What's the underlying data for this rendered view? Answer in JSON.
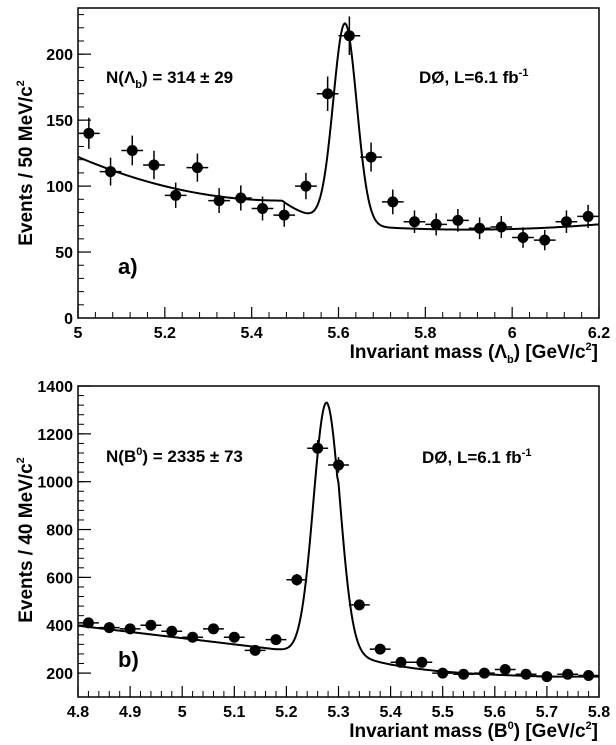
{
  "chart_data": [
    {
      "type": "scatter",
      "panel_label": "a)",
      "xlabel": {
        "pre": "Invariant mass (",
        "sym": "Λ",
        "sub": "b",
        "post": ") [GeV/c",
        "sup": "2",
        "end": "]"
      },
      "ylabel": {
        "pre": "Events / 50 MeV/c",
        "sup": "2"
      },
      "xlim": [
        5.0,
        6.2
      ],
      "ylim": [
        0,
        235
      ],
      "xticks": [
        "5",
        "5.2",
        "5.4",
        "5.6",
        "5.8",
        "6",
        "6.2"
      ],
      "yticks": [
        "50",
        "100",
        "150",
        "200"
      ],
      "annotations": [
        {
          "id": "yield",
          "pre": "N(",
          "sym": "Λ",
          "sub": "b",
          "post": ") = 314 ± 29"
        },
        {
          "id": "lumi",
          "pre": "DØ, L=6.1 fb",
          "sup": "-1"
        }
      ],
      "bin_halfwidth": 0.025,
      "x": [
        5.025,
        5.075,
        5.125,
        5.175,
        5.225,
        5.275,
        5.325,
        5.375,
        5.425,
        5.475,
        5.525,
        5.575,
        5.625,
        5.675,
        5.725,
        5.775,
        5.825,
        5.875,
        5.925,
        5.975,
        6.025,
        6.075,
        6.125,
        6.175
      ],
      "y": [
        140,
        111,
        127,
        116,
        93,
        114,
        89,
        91,
        83,
        78,
        100,
        170,
        214,
        122,
        88,
        73,
        71,
        74,
        68,
        69,
        61,
        59,
        73,
        77
      ],
      "fit": {
        "bg_a": 89,
        "bg_b": 2185,
        "bg_c": 5.32,
        "bg_d": 129,
        "bg_e": 5.0,
        "bg_tail": 67,
        "peak_amp": 152,
        "peak_mean": 5.615,
        "peak_sigma": 0.027
      }
    },
    {
      "type": "scatter",
      "panel_label": "b)",
      "xlabel": {
        "pre": "Invariant mass (B",
        "sup1": "0",
        "post": ") [GeV/c",
        "sup": "2",
        "end": "]"
      },
      "ylabel": {
        "pre": "Events / 40 MeV/c",
        "sup": "2"
      },
      "xlim": [
        4.8,
        5.8
      ],
      "ylim": [
        100,
        1400
      ],
      "xticks": [
        "4.8",
        "4.9",
        "5",
        "5.1",
        "5.2",
        "5.3",
        "5.4",
        "5.5",
        "5.6",
        "5.7",
        "5.8"
      ],
      "yticks": [
        "200",
        "400",
        "600",
        "800",
        "1000",
        "1200",
        "1400"
      ],
      "annotations": [
        {
          "id": "yield",
          "pre": "N(B",
          "sup": "0",
          "post": ") = 2335 ± 73"
        },
        {
          "id": "lumi",
          "pre": "DØ, L=6.1 fb",
          "sup": "-1"
        }
      ],
      "bin_halfwidth": 0.02,
      "x": [
        4.82,
        4.86,
        4.9,
        4.94,
        4.98,
        5.02,
        5.06,
        5.1,
        5.14,
        5.18,
        5.22,
        5.26,
        5.3,
        5.34,
        5.38,
        5.42,
        5.46,
        5.5,
        5.54,
        5.58,
        5.62,
        5.66,
        5.7,
        5.74,
        5.78
      ],
      "y": [
        410,
        390,
        385,
        400,
        375,
        350,
        385,
        350,
        295,
        340,
        590,
        1140,
        1070,
        485,
        300,
        245,
        245,
        200,
        195,
        200,
        215,
        195,
        185,
        195,
        190
      ],
      "fit": {
        "peak_amp": 1060,
        "peak_mean": 5.277,
        "peak_sigma": 0.025
      }
    }
  ]
}
